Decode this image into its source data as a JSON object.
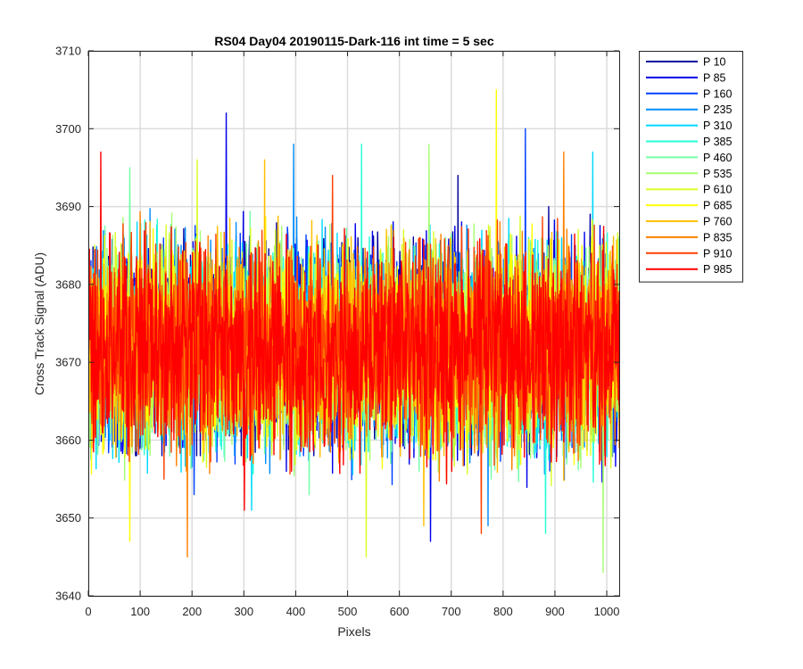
{
  "chart_data": {
    "type": "line",
    "title": "RS04 Day04 20190115-Dark-116 int time = 5 sec",
    "xlabel": "Pixels",
    "ylabel": "Cross Track Signal (ADU)",
    "xlim": [
      0,
      1024
    ],
    "ylim": [
      3640,
      3710
    ],
    "xticks": [
      0,
      100,
      200,
      300,
      400,
      500,
      600,
      700,
      800,
      900,
      1000
    ],
    "yticks": [
      3640,
      3650,
      3660,
      3670,
      3680,
      3690,
      3700,
      3710
    ],
    "grid": true,
    "legend_location": "outside-top-right",
    "num_points_per_series": 1024,
    "noise_center": 3672,
    "noise_half_range": 10,
    "series": [
      {
        "name": "P 10",
        "color": "#00009c",
        "approx_min": 3658,
        "approx_max": 3694
      },
      {
        "name": "P 85",
        "color": "#0000ea",
        "approx_min": 3647,
        "approx_max": 3702
      },
      {
        "name": "P 160",
        "color": "#0040ff",
        "approx_min": 3653,
        "approx_max": 3700
      },
      {
        "name": "P 235",
        "color": "#008dff",
        "approx_min": 3649,
        "approx_max": 3698
      },
      {
        "name": "P 310",
        "color": "#00d9ff",
        "approx_min": 3651,
        "approx_max": 3697
      },
      {
        "name": "P 385",
        "color": "#26ffd9",
        "approx_min": 3648,
        "approx_max": 3698
      },
      {
        "name": "P 460",
        "color": "#73ffa6",
        "approx_min": 3653,
        "approx_max": 3695
      },
      {
        "name": "P 535",
        "color": "#a6ff73",
        "approx_min": 3643,
        "approx_max": 3698
      },
      {
        "name": "P 610",
        "color": "#d9ff26",
        "approx_min": 3645,
        "approx_max": 3696
      },
      {
        "name": "P 685",
        "color": "#ffff00",
        "approx_min": 3647,
        "approx_max": 3705
      },
      {
        "name": "P 760",
        "color": "#ffbf00",
        "approx_min": 3649,
        "approx_max": 3696
      },
      {
        "name": "P 835",
        "color": "#ff8000",
        "approx_min": 3645,
        "approx_max": 3697
      },
      {
        "name": "P 910",
        "color": "#ff4000",
        "approx_min": 3648,
        "approx_max": 3694
      },
      {
        "name": "P 985",
        "color": "#ff0000",
        "approx_min": 3651,
        "approx_max": 3697
      }
    ]
  }
}
